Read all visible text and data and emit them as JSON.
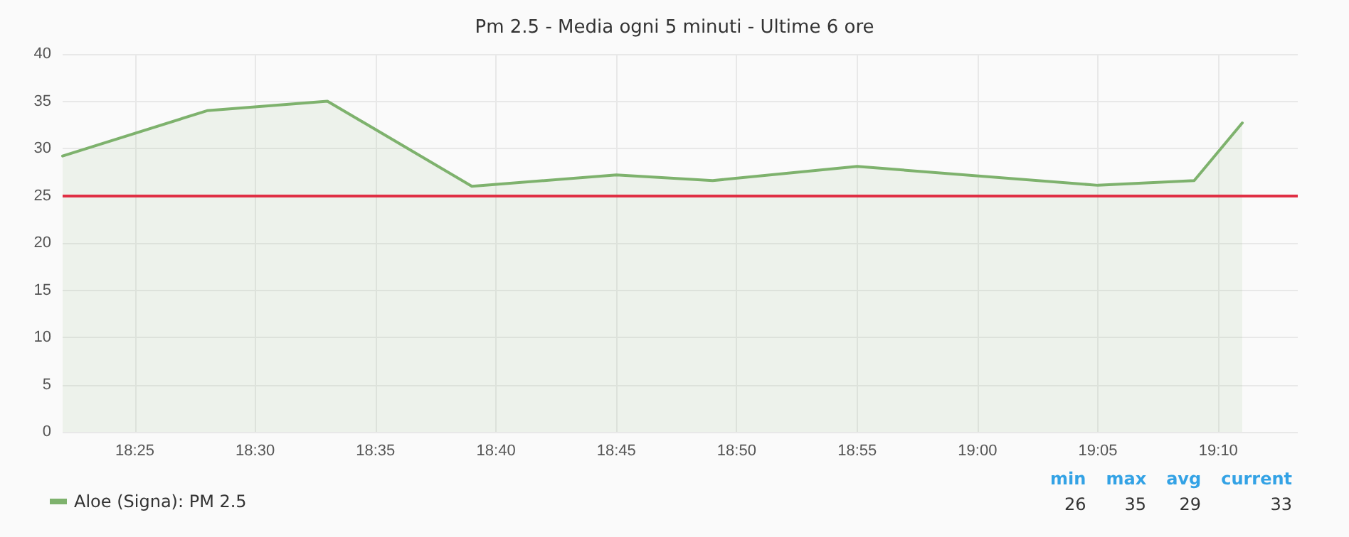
{
  "chart_data": {
    "type": "area",
    "title": "Pm 2.5 - Media ogni 5 minuti - Ultime 6 ore",
    "x": [
      18.3667,
      18.4667,
      18.55,
      18.65,
      18.75,
      18.8167,
      18.9167,
      19.0833,
      19.15,
      19.1833
    ],
    "series": [
      {
        "name": "Aloe (Signa): PM 2.5",
        "color": "#7eb26d",
        "values": [
          29.2,
          34,
          35,
          26,
          27.2,
          26.6,
          28.1,
          26.1,
          26.6,
          32.7
        ]
      }
    ],
    "xlim": [
      18.3667,
      19.2217
    ],
    "xticks": [
      {
        "value": 18.4167,
        "label": "18:25"
      },
      {
        "value": 18.5,
        "label": "18:30"
      },
      {
        "value": 18.5833,
        "label": "18:35"
      },
      {
        "value": 18.6667,
        "label": "18:40"
      },
      {
        "value": 18.75,
        "label": "18:45"
      },
      {
        "value": 18.8333,
        "label": "18:50"
      },
      {
        "value": 18.9167,
        "label": "18:55"
      },
      {
        "value": 19,
        "label": "19:00"
      },
      {
        "value": 19.0833,
        "label": "19:05"
      },
      {
        "value": 19.1667,
        "label": "19:10"
      }
    ],
    "ylim": [
      0,
      40
    ],
    "yticks": [
      0,
      5,
      10,
      15,
      20,
      25,
      30,
      35,
      40
    ],
    "ref_lines": [
      {
        "axis": "y",
        "value": 25,
        "color": "#e02f44",
        "line_style": "solid"
      }
    ],
    "annotations": [
      "min",
      "max",
      "avg",
      "current",
      "26",
      "35",
      "29",
      "33"
    ],
    "grid": true,
    "legend": "bottom left",
    "marker": "none",
    "line_style": "solid"
  }
}
